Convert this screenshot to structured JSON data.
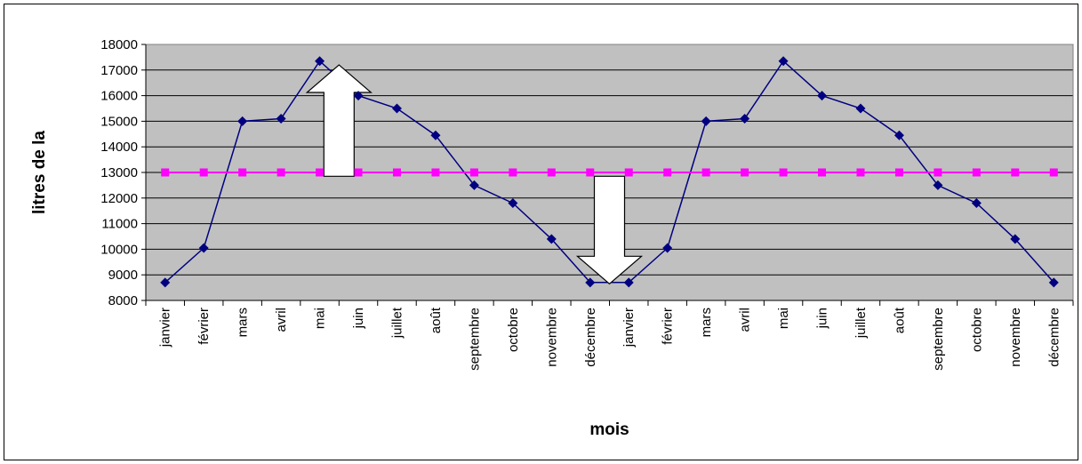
{
  "chart_data": {
    "type": "line",
    "title": "",
    "xlabel": "mois",
    "ylabel": "litres de la",
    "ylim": [
      8000,
      18000
    ],
    "ytick_step": 1000,
    "grid": true,
    "legend": "none",
    "categories": [
      "janvier",
      "février",
      "mars",
      "avril",
      "mai",
      "juin",
      "juillet",
      "août",
      "septembre",
      "octobre",
      "novembre",
      "décembre",
      "janvier",
      "février",
      "mars",
      "avril",
      "mai",
      "juin",
      "juillet",
      "août",
      "septembre",
      "octobre",
      "novembre",
      "décembre"
    ],
    "series": [
      {
        "color": "#000080",
        "marker": "diamond",
        "values": [
          8700,
          10050,
          15000,
          15100,
          17350,
          16000,
          15500,
          14450,
          12500,
          11800,
          10400,
          8700,
          8700,
          10050,
          15000,
          15100,
          17350,
          16000,
          15500,
          14450,
          12500,
          11800,
          10400,
          8700
        ]
      },
      {
        "color": "#FF00FF",
        "marker": "square",
        "values": [
          13000,
          13000,
          13000,
          13000,
          13000,
          13000,
          13000,
          13000,
          13000,
          13000,
          13000,
          13000,
          13000,
          13000,
          13000,
          13000,
          13000,
          13000,
          13000,
          13000,
          13000,
          13000,
          13000,
          13000
        ]
      }
    ],
    "annotations": [
      {
        "type": "arrow-up",
        "from_category_index": 4,
        "from_y": 12850,
        "to_y": 17200
      },
      {
        "type": "arrow-down",
        "from_category_index": 11,
        "from_y": 12850,
        "to_y": 8650
      }
    ],
    "plot_background": "#C0C0C0"
  }
}
